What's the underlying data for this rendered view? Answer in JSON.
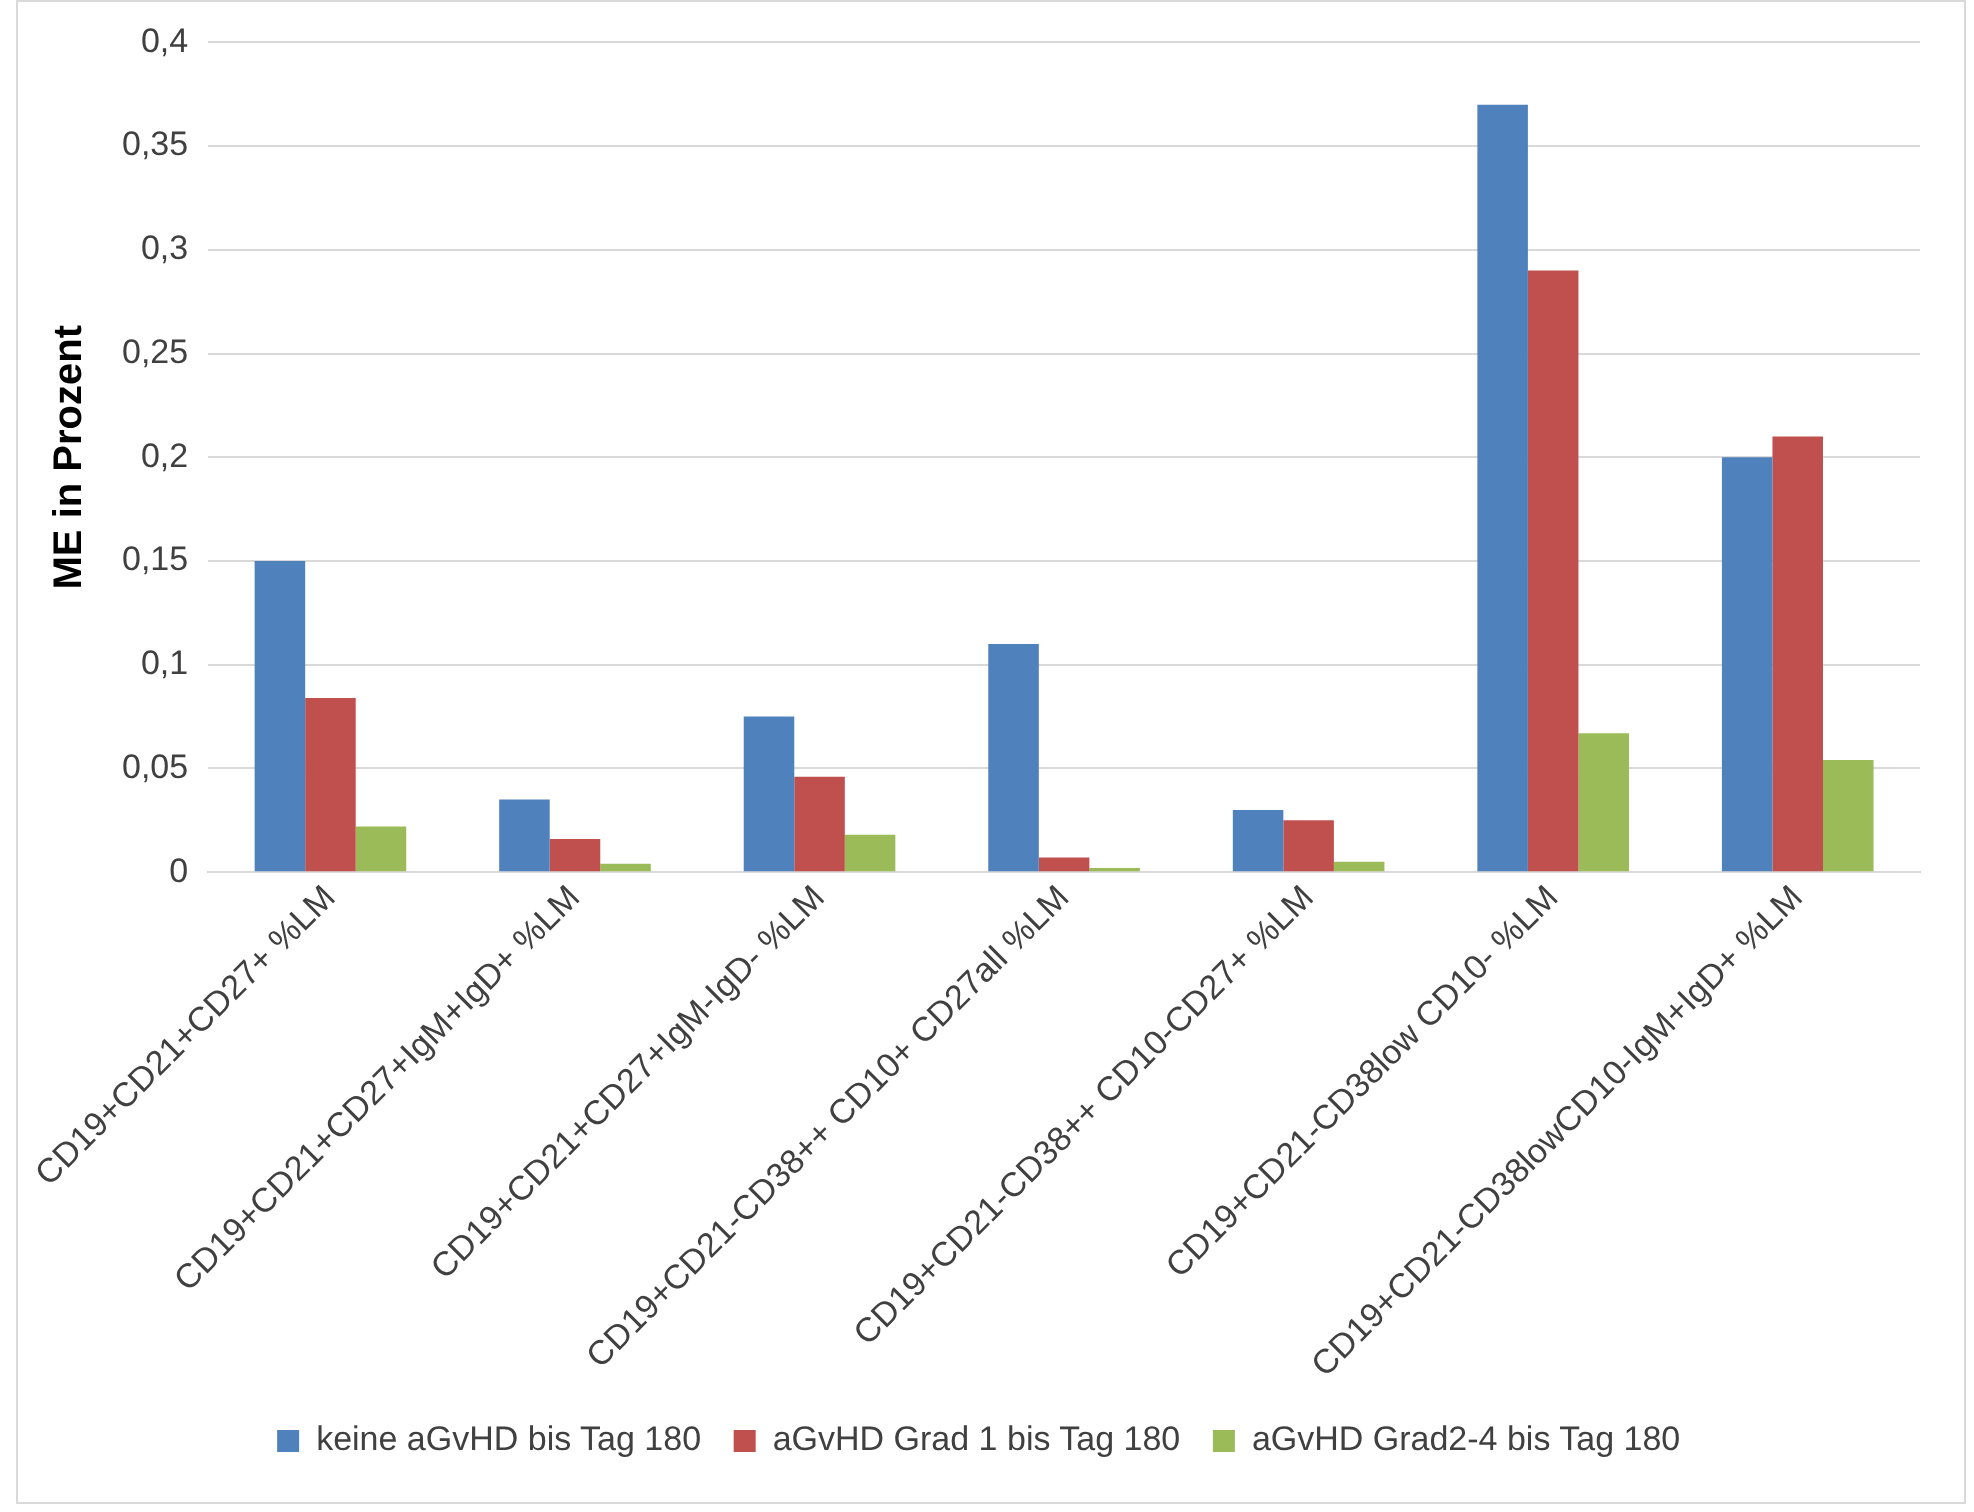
{
  "chart_data": {
    "type": "bar",
    "ylabel": "ME in Prozent",
    "categories": [
      "CD19+CD21+CD27+ %LM",
      "CD19+CD21+CD27+IgM+IgD+ %LM",
      "CD19+CD21+CD27+IgM-IgD- %LM",
      "CD19+CD21-CD38++ CD10+ CD27all %LM",
      "CD19+CD21-CD38++ CD10-CD27+ %LM",
      "CD19+CD21-CD38low CD10- %LM",
      "CD19+CD21-CD38lowCD10-IgM+IgD+ %LM"
    ],
    "series": [
      {
        "name": "keine aGvHD bis Tag 180",
        "color": "#4f81bd",
        "values": [
          0.15,
          0.035,
          0.075,
          0.11,
          0.03,
          0.37,
          0.2
        ]
      },
      {
        "name": "aGvHD Grad 1 bis Tag 180",
        "color": "#c0504d",
        "values": [
          0.084,
          0.016,
          0.046,
          0.007,
          0.025,
          0.29,
          0.21
        ]
      },
      {
        "name": "aGvHD Grad2-4 bis Tag 180",
        "color": "#9bbb59",
        "values": [
          0.022,
          0.004,
          0.018,
          0.002,
          0.005,
          0.067,
          0.054
        ]
      }
    ],
    "ylim": [
      0,
      0.4
    ],
    "yticks": [
      {
        "value": 0,
        "label": "0"
      },
      {
        "value": 0.05,
        "label": "0,05"
      },
      {
        "value": 0.1,
        "label": "0,1"
      },
      {
        "value": 0.15,
        "label": "0,15"
      },
      {
        "value": 0.2,
        "label": "0,2"
      },
      {
        "value": 0.25,
        "label": "0,25"
      },
      {
        "value": 0.3,
        "label": "0,3"
      },
      {
        "value": 0.35,
        "label": "0,35"
      },
      {
        "value": 0.4,
        "label": "0,4"
      }
    ],
    "grid": "y",
    "legend": "bottom"
  }
}
